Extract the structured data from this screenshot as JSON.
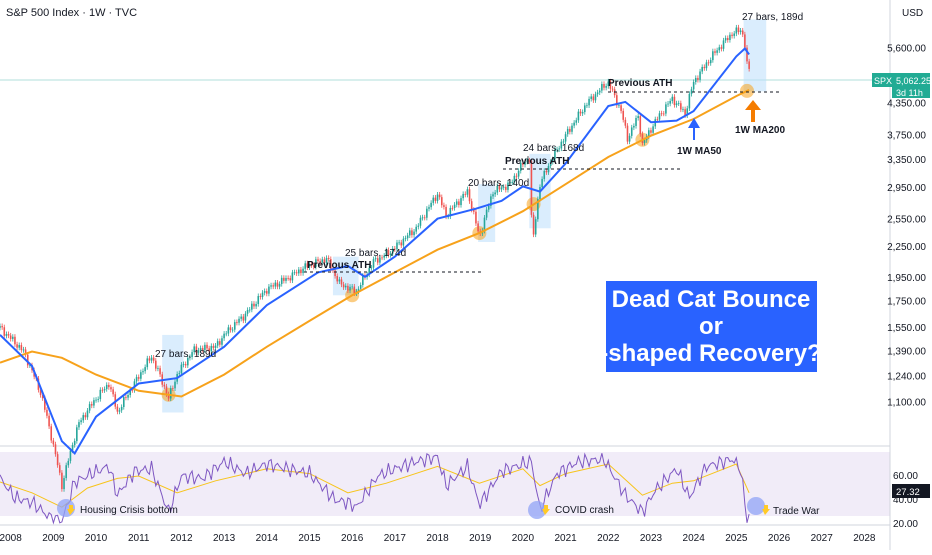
{
  "header": {
    "title": "S&P 500 Index · 1W · TVC",
    "currency": "USD"
  },
  "price_tag": {
    "symbol": "SPX",
    "value": "5,062.25",
    "countdown": "3d 11h"
  },
  "rsi_tag": "27.32",
  "callout": {
    "line1": "Dead Cat Bounce",
    "line2": "or",
    "line3": "V-shaped Recovery??"
  },
  "colors": {
    "price_up": "#26a69a",
    "price_down": "#ef5350",
    "ma50": "#2962ff",
    "ma200": "#f7a21b",
    "rsi": "#7e57c2",
    "rsi_ma": "#f7c41b",
    "callout_bg": "#2962ff",
    "tag": "#22ab94"
  },
  "annotations": [
    {
      "id": "bars-2012",
      "text": "27 bars, 189d"
    },
    {
      "id": "prev-ath-2015",
      "text": "Previous ATH"
    },
    {
      "id": "bars-2015",
      "text": "25 bars, 174d"
    },
    {
      "id": "bars-2018",
      "text": "20 bars, 140d"
    },
    {
      "id": "prev-ath-2020",
      "text": "Previous ATH"
    },
    {
      "id": "bars-2020",
      "text": "24 bars, 168d"
    },
    {
      "id": "prev-ath-2022",
      "text": "Previous ATH"
    },
    {
      "id": "bars-2025",
      "text": "27 bars, 189d"
    },
    {
      "id": "ma50-label",
      "text": "1W MA50"
    },
    {
      "id": "ma200-label",
      "text": "1W MA200"
    },
    {
      "id": "housing",
      "text": "Housing Crisis bottom"
    },
    {
      "id": "covid",
      "text": "COVID crash"
    },
    {
      "id": "tradewar",
      "text": "Trade War"
    }
  ],
  "chart_data": [
    {
      "type": "line",
      "yscale": "log",
      "ylim": [
        900,
        7000
      ],
      "xlim": [
        2007.75,
        2028.6
      ],
      "x_ticks": [
        "2008",
        "2009",
        "2010",
        "2011",
        "2012",
        "2013",
        "2014",
        "2015",
        "2016",
        "2017",
        "2018",
        "2019",
        "2020",
        "2021",
        "2022",
        "2023",
        "2024",
        "2025",
        "2026",
        "2027",
        "2028"
      ],
      "y_ticks": [
        1100,
        1240,
        1390,
        1550,
        1750,
        1950,
        2250,
        2550,
        2950,
        3350,
        3750,
        4350,
        5600
      ],
      "series": [
        {
          "id": "price",
          "x": [
            2007.75,
            2008.3,
            2008.7,
            2009.0,
            2009.2,
            2009.6,
            2010.0,
            2010.3,
            2010.5,
            2010.9,
            2011.3,
            2011.7,
            2011.9,
            2012.3,
            2012.8,
            2013.0,
            2013.5,
            2014.0,
            2014.5,
            2014.9,
            2015.4,
            2015.7,
            2016.1,
            2016.5,
            2016.9,
            2017.5,
            2018.0,
            2018.2,
            2018.7,
            2018.98,
            2019.3,
            2019.7,
            2020.0,
            2020.15,
            2020.22,
            2020.4,
            2020.7,
            2021.0,
            2021.5,
            2021.99,
            2022.3,
            2022.45,
            2022.7,
            2022.8,
            2023.1,
            2023.5,
            2023.8,
            2024.0,
            2024.5,
            2024.9,
            2025.1,
            2025.18,
            2025.28,
            2025.3
          ],
          "y": [
            1550,
            1390,
            1150,
            900,
            750,
            1000,
            1120,
            1200,
            1050,
            1200,
            1360,
            1120,
            1250,
            1400,
            1420,
            1500,
            1650,
            1850,
            1950,
            2050,
            2130,
            1900,
            1830,
            2100,
            2200,
            2450,
            2870,
            2600,
            2900,
            2350,
            2900,
            3000,
            3300,
            3380,
            2240,
            3000,
            3400,
            3750,
            4350,
            4800,
            4200,
            3700,
            4100,
            3600,
            4000,
            4450,
            4150,
            4800,
            5500,
            6000,
            6100,
            5900,
            4900,
            5060
          ]
        },
        {
          "id": "ma50",
          "x": [
            2007.75,
            2008.5,
            2009.2,
            2009.5,
            2010.0,
            2011.0,
            2011.9,
            2013.0,
            2014.0,
            2015.2,
            2015.9,
            2016.3,
            2017.0,
            2018.0,
            2018.9,
            2019.5,
            2020.0,
            2020.4,
            2021.0,
            2022.0,
            2022.4,
            2023.0,
            2023.6,
            2024.0,
            2025.0,
            2025.2,
            2025.3
          ],
          "y": [
            1500,
            1300,
            920,
            870,
            1030,
            1200,
            1230,
            1420,
            1720,
            2000,
            2060,
            1960,
            2150,
            2560,
            2680,
            2780,
            2970,
            2900,
            3300,
            4300,
            4380,
            3990,
            4020,
            4200,
            5400,
            5600,
            5450
          ]
        },
        {
          "id": "ma200",
          "x": [
            2007.75,
            2008.5,
            2009.2,
            2010.0,
            2011.0,
            2012.0,
            2013.0,
            2014.0,
            2015.0,
            2016.0,
            2017.0,
            2018.0,
            2019.0,
            2020.0,
            2021.0,
            2022.0,
            2023.0,
            2024.0,
            2025.0,
            2025.3
          ],
          "y": [
            1320,
            1390,
            1350,
            1250,
            1160,
            1130,
            1250,
            1420,
            1600,
            1800,
            2000,
            2220,
            2400,
            2650,
            3000,
            3400,
            3750,
            4050,
            4500,
            4630
          ]
        }
      ]
    },
    {
      "type": "line",
      "ylim": [
        20,
        80
      ],
      "y_ticks": [
        20.0,
        40.0,
        60.0
      ],
      "series": [
        {
          "id": "rsi",
          "x": [
            2007.75,
            2008.1,
            2008.5,
            2008.9,
            2009.2,
            2009.5,
            2009.9,
            2010.3,
            2010.5,
            2010.9,
            2011.3,
            2011.7,
            2012.0,
            2012.5,
            2013.0,
            2013.5,
            2014.0,
            2014.5,
            2015.0,
            2015.6,
            2015.9,
            2016.1,
            2016.6,
            2017.0,
            2017.5,
            2018.0,
            2018.2,
            2018.7,
            2018.98,
            2019.5,
            2020.0,
            2020.2,
            2020.4,
            2020.8,
            2021.3,
            2021.9,
            2022.4,
            2022.8,
            2023.1,
            2023.6,
            2023.9,
            2024.3,
            2024.9,
            2025.1,
            2025.25,
            2025.3
          ],
          "y": [
            58,
            42,
            38,
            26,
            22,
            55,
            62,
            68,
            44,
            64,
            66,
            30,
            60,
            58,
            72,
            62,
            70,
            66,
            62,
            40,
            38,
            34,
            60,
            66,
            72,
            76,
            52,
            68,
            36,
            64,
            70,
            72,
            32,
            62,
            72,
            74,
            44,
            30,
            48,
            66,
            42,
            68,
            74,
            66,
            22,
            27
          ]
        },
        {
          "id": "rsi_ma",
          "x": [
            2007.75,
            2008.5,
            2009.2,
            2009.8,
            2010.5,
            2011.0,
            2011.9,
            2012.8,
            2014.0,
            2015.0,
            2015.9,
            2016.8,
            2018.0,
            2018.98,
            2020.0,
            2020.4,
            2021.0,
            2022.0,
            2022.8,
            2023.5,
            2024.0,
            2025.0,
            2025.3
          ],
          "y": [
            55,
            46,
            34,
            50,
            58,
            60,
            46,
            56,
            66,
            62,
            46,
            54,
            68,
            54,
            66,
            52,
            62,
            70,
            44,
            54,
            56,
            70,
            46
          ]
        }
      ]
    }
  ]
}
